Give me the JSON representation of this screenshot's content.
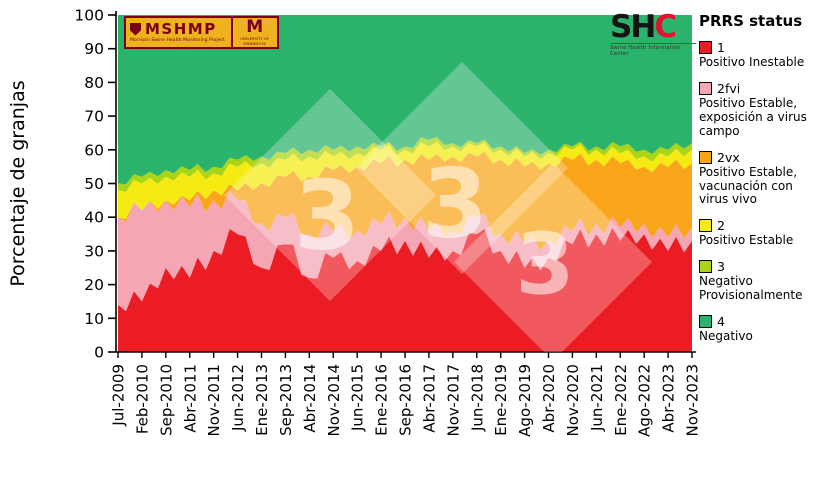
{
  "logos": {
    "mshmp": {
      "title": "MSHMP",
      "subtitle": "Morrison Swine Health Monitoring Project"
    },
    "umn": {
      "letter": "M",
      "caption": "UNIVERSITY OF MINNESOTA"
    },
    "shic": {
      "sh": "SH",
      "c": "C",
      "caption": "Swine Health Information Center"
    }
  },
  "watermark": {
    "digit": "3"
  },
  "legend": {
    "title": "PRRS status"
  },
  "chart_data": {
    "type": "area",
    "stacked": true,
    "title": "",
    "xlabel": "",
    "ylabel": "Porcentaje de granjas",
    "ylim": [
      0,
      100
    ],
    "yticks": [
      0,
      10,
      20,
      30,
      40,
      50,
      60,
      70,
      80,
      90,
      100
    ],
    "grid": false,
    "legend_position": "right",
    "categories": [
      "Jul-2009",
      "Feb-2010",
      "Sep-2010",
      "Abr-2011",
      "Nov-2011",
      "Jun-2012",
      "Ene-2013",
      "Sep-2013",
      "Abr-2014",
      "Nov-2014",
      "Jun-2015",
      "Ene-2016",
      "Sep-2016",
      "Abr-2017",
      "Nov-2017",
      "Jun-2018",
      "Ene-2019",
      "Ago-2019",
      "Abr-2020",
      "Nov-2020",
      "Jun-2021",
      "Ene-2022",
      "Ago-2022",
      "Abr-2023",
      "Nov-2023"
    ],
    "series": [
      {
        "name": "1",
        "label": "Positivo Inestable",
        "color": "#ec1c24",
        "values": [
          14,
          15,
          25,
          22,
          30,
          35,
          25,
          32,
          22,
          28,
          27,
          30,
          33,
          28,
          30,
          35,
          30,
          25,
          28,
          32,
          35,
          33,
          35,
          30,
          33
        ]
      },
      {
        "name": "2fvi",
        "label": "Positivo Estable, exposición a virus campo",
        "color": "#f4a6b4",
        "values": [
          26,
          27,
          20,
          21,
          15,
          10,
          13,
          8,
          13,
          8,
          9,
          8,
          7,
          8,
          6,
          5,
          5,
          7,
          5,
          4,
          3,
          4,
          3,
          4,
          4
        ]
      },
      {
        "name": "2vx",
        "label": "Positivo Estable, vacunación con virus vivo",
        "color": "#f9a51a",
        "values": [
          0,
          0,
          0,
          2,
          3,
          3,
          12,
          12,
          17,
          18,
          19,
          18,
          17,
          21,
          22,
          18,
          22,
          23,
          23,
          21,
          19,
          19,
          17,
          21,
          19
        ]
      },
      {
        "name": "2",
        "label": "Positivo Estable",
        "color": "#f5eb12",
        "values": [
          8,
          8,
          7,
          7,
          5,
          7,
          6,
          5,
          6,
          4,
          4,
          4,
          3,
          4,
          3,
          3,
          3,
          3,
          3,
          3,
          3,
          3,
          3,
          3,
          4
        ]
      },
      {
        "name": "3",
        "label": "Negativo Provisionalmente",
        "color": "#a9d418",
        "values": [
          2,
          2,
          2,
          2,
          2,
          2,
          2,
          2,
          2,
          2,
          2,
          1,
          1,
          2,
          1,
          1,
          1,
          1,
          1,
          1,
          1,
          2,
          2,
          2,
          2
        ]
      },
      {
        "name": "4",
        "label": "Negativo",
        "color": "#2bb26b",
        "values": [
          50,
          48,
          46,
          46,
          45,
          43,
          42,
          41,
          40,
          40,
          39,
          39,
          39,
          37,
          38,
          38,
          39,
          41,
          40,
          39,
          39,
          39,
          40,
          40,
          38
        ]
      }
    ]
  }
}
